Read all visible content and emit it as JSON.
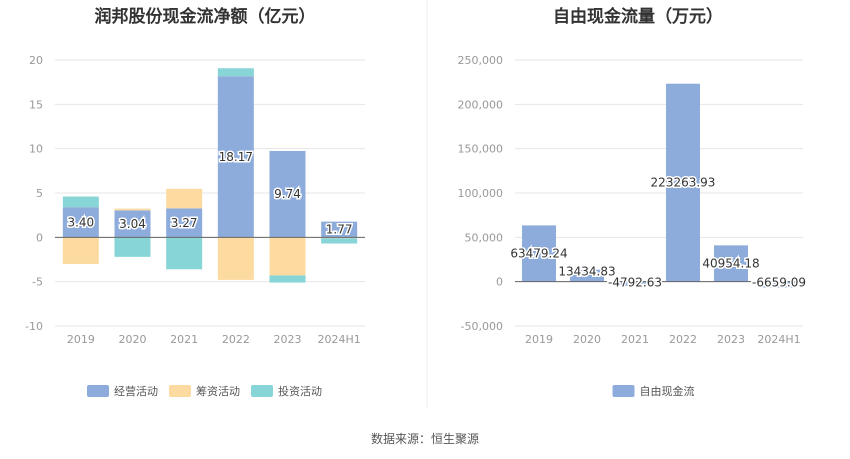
{
  "source_note": "数据来源：恒生聚源",
  "chart_data": [
    {
      "type": "bar",
      "stacked": true,
      "title": "润邦股份现金流净额（亿元）",
      "categories": [
        "2019",
        "2020",
        "2021",
        "2022",
        "2023",
        "2024H1"
      ],
      "ylim": [
        -10,
        20
      ],
      "yticks": [
        -10,
        -5,
        0,
        5,
        10,
        15,
        20
      ],
      "ytick_labels": [
        "-10",
        "-5",
        "0",
        "5",
        "10",
        "15",
        "20"
      ],
      "grid": true,
      "legend_position": "bottom",
      "series": [
        {
          "name": "经营活动",
          "color": "#8eacdb",
          "values": [
            3.4,
            3.04,
            3.27,
            18.17,
            9.74,
            1.77
          ]
        },
        {
          "name": "筹资活动",
          "color": "#fddba0",
          "values": [
            -3.0,
            0.2,
            2.2,
            -4.8,
            -4.3,
            -0.1
          ]
        },
        {
          "name": "投资活动",
          "color": "#87d5d7",
          "values": [
            1.2,
            -2.2,
            -3.6,
            0.9,
            -0.8,
            -0.6
          ]
        }
      ],
      "data_labels": [
        "3.40",
        "3.04",
        "3.27",
        "18.17",
        "9.74",
        "1.77"
      ]
    },
    {
      "type": "bar",
      "title": "自由现金流量（万元）",
      "categories": [
        "2019",
        "2020",
        "2021",
        "2022",
        "2023",
        "2024H1"
      ],
      "ylim": [
        -50000,
        250000
      ],
      "yticks": [
        -50000,
        0,
        50000,
        100000,
        150000,
        200000,
        250000
      ],
      "ytick_labels": [
        "-50,000",
        "0",
        "50,000",
        "100,000",
        "150,000",
        "200,000",
        "250,000"
      ],
      "grid": true,
      "legend_position": "bottom",
      "series": [
        {
          "name": "自由现金流",
          "color": "#8eacdb",
          "values": [
            63479.24,
            13434.83,
            -4792.63,
            223263.93,
            40954.18,
            -6659.09
          ]
        }
      ],
      "data_labels": [
        "63479.24",
        "13434.83",
        "-4792.63",
        "223263.93",
        "40954.18",
        "-6659.09"
      ]
    }
  ]
}
